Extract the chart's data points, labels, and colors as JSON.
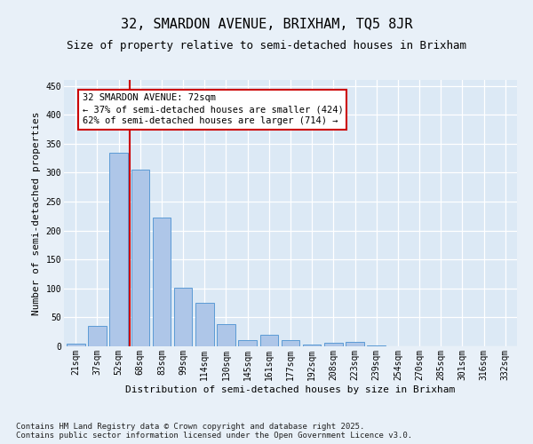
{
  "title_line1": "32, SMARDON AVENUE, BRIXHAM, TQ5 8JR",
  "title_line2": "Size of property relative to semi-detached houses in Brixham",
  "xlabel": "Distribution of semi-detached houses by size in Brixham",
  "ylabel": "Number of semi-detached properties",
  "categories": [
    "21sqm",
    "37sqm",
    "52sqm",
    "68sqm",
    "83sqm",
    "99sqm",
    "114sqm",
    "130sqm",
    "145sqm",
    "161sqm",
    "177sqm",
    "192sqm",
    "208sqm",
    "223sqm",
    "239sqm",
    "254sqm",
    "270sqm",
    "285sqm",
    "301sqm",
    "316sqm",
    "332sqm"
  ],
  "values": [
    5,
    35,
    335,
    305,
    223,
    101,
    75,
    38,
    11,
    20,
    11,
    3,
    6,
    7,
    1,
    0,
    0,
    0,
    0,
    0,
    0
  ],
  "bar_color": "#aec6e8",
  "bar_edge_color": "#5b9bd5",
  "vline_x_index": 3,
  "vline_color": "#cc0000",
  "annotation_title": "32 SMARDON AVENUE: 72sqm",
  "annotation_line1": "← 37% of semi-detached houses are smaller (424)",
  "annotation_line2": "62% of semi-detached houses are larger (714) →",
  "annotation_box_color": "#ffffff",
  "annotation_box_edge": "#cc0000",
  "ylim": [
    0,
    460
  ],
  "yticks": [
    0,
    50,
    100,
    150,
    200,
    250,
    300,
    350,
    400,
    450
  ],
  "bg_color": "#e8f0f8",
  "plot_bg_color": "#dce9f5",
  "footer_line1": "Contains HM Land Registry data © Crown copyright and database right 2025.",
  "footer_line2": "Contains public sector information licensed under the Open Government Licence v3.0.",
  "title_fontsize": 11,
  "subtitle_fontsize": 9,
  "axis_label_fontsize": 8,
  "tick_fontsize": 7,
  "annotation_fontsize": 7.5,
  "footer_fontsize": 6.5
}
